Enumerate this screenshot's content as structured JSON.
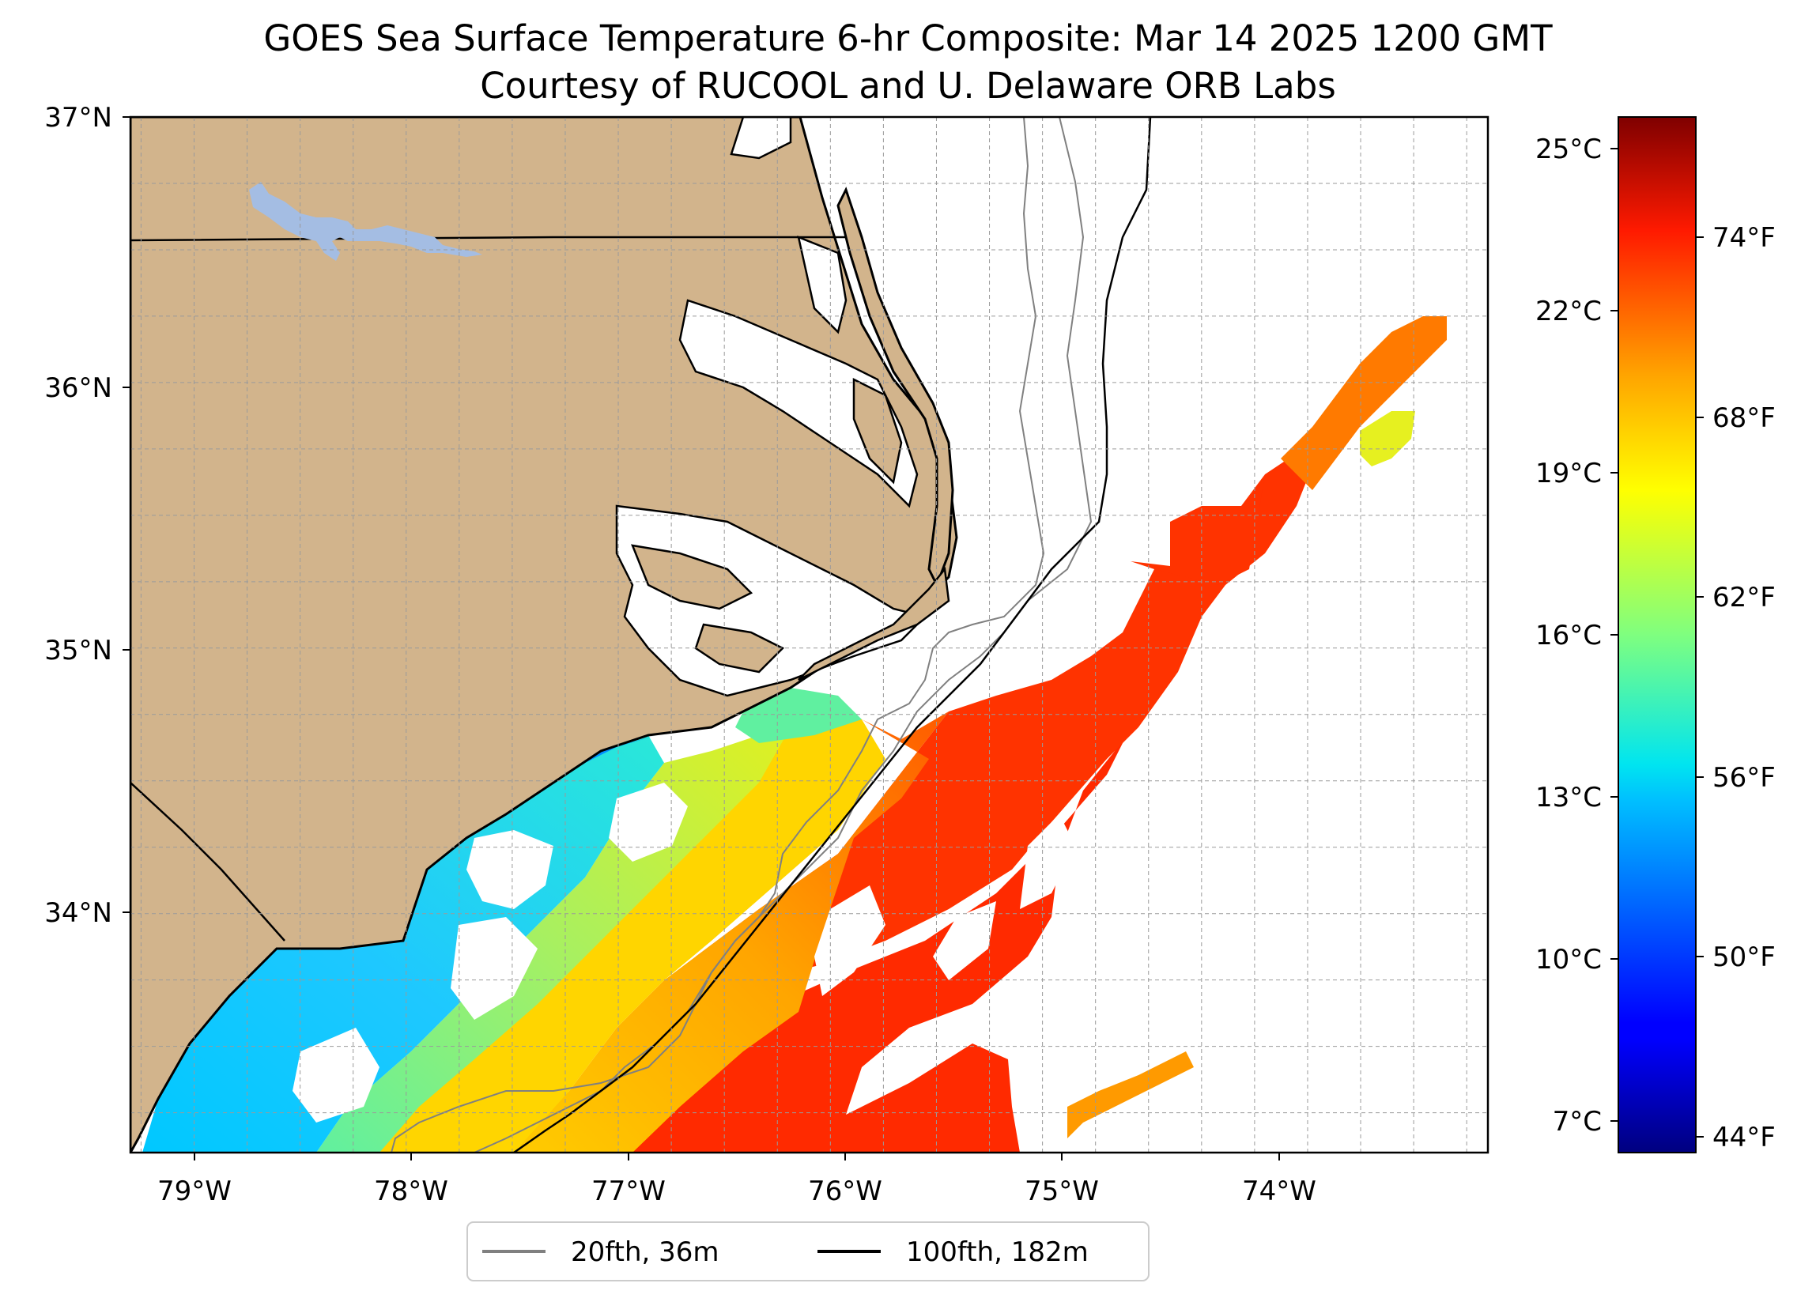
{
  "title": {
    "line1": "GOES Sea Surface Temperature 6-hr Composite: Mar 14 2025 1200 GMT",
    "line2": "Courtesy of RUCOOL and U. Delaware ORB Labs"
  },
  "map": {
    "lon_range": [
      -79.3,
      -72.9
    ],
    "lat_range": [
      33.1,
      37.0
    ],
    "lon_ticks": [
      "79°W",
      "78°W",
      "77°W",
      "76°W",
      "75°W",
      "74°W"
    ],
    "lat_ticks": [
      "37°N",
      "36°N",
      "35°N",
      "34°N"
    ],
    "land_color": "#d2b48c",
    "lake_color": "#a4bde3",
    "grid": "on, dashed"
  },
  "colorbar": {
    "colormap": "jet",
    "range_c": [
      6.5,
      25.6
    ],
    "celsius_ticks": [
      "25°C",
      "22°C",
      "19°C",
      "16°C",
      "13°C",
      "10°C",
      "7°C"
    ],
    "fahrenheit_ticks": [
      "74°F",
      "68°F",
      "62°F",
      "56°F",
      "50°F",
      "44°F"
    ]
  },
  "legend": {
    "items": [
      {
        "label": "20fth, 36m",
        "color": "#808080"
      },
      {
        "label": "100fth, 182m",
        "color": "#000000"
      }
    ]
  }
}
